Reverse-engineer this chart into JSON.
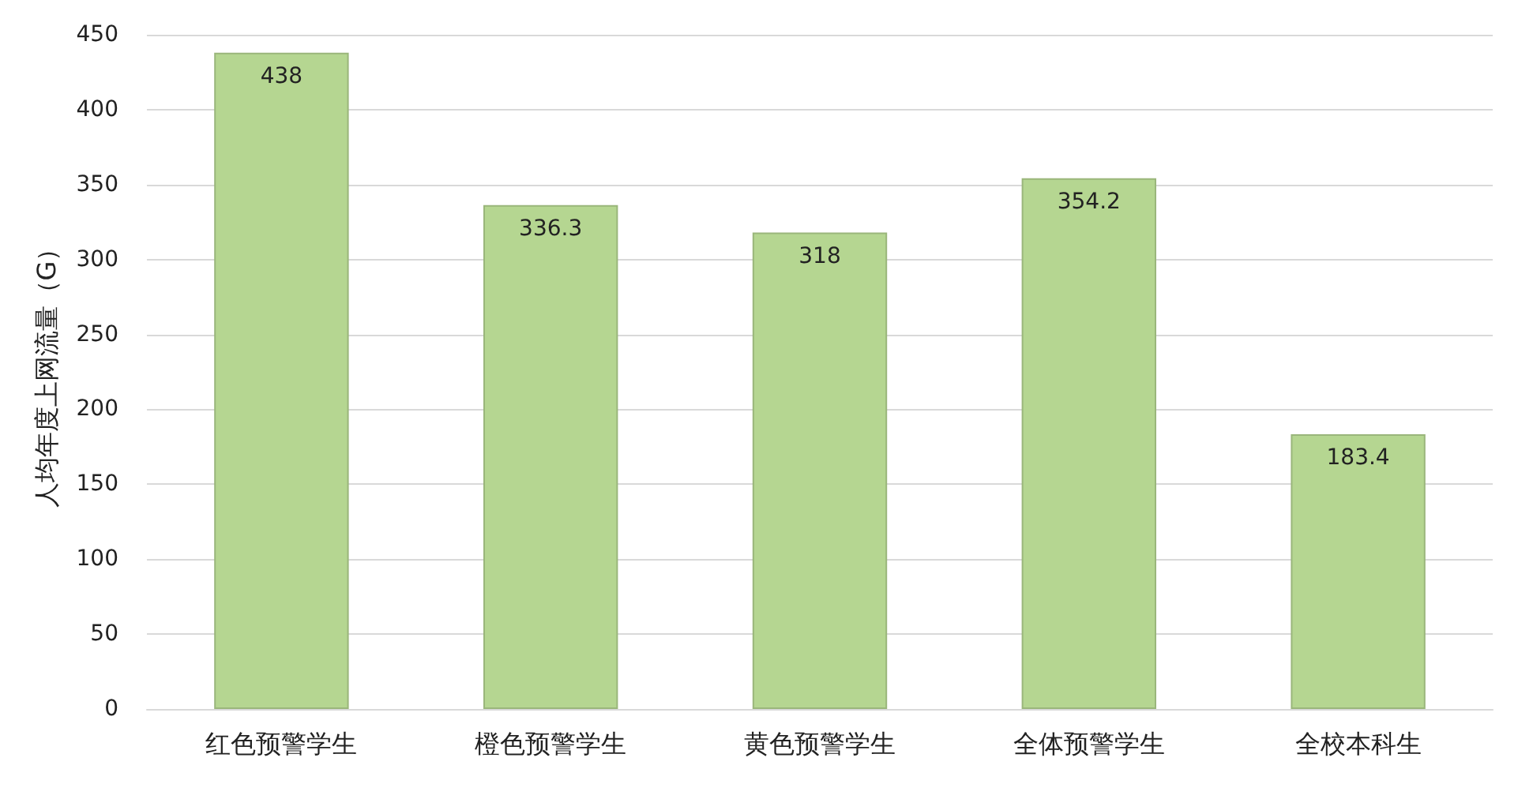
{
  "chart_data": {
    "type": "bar",
    "ylabel": "人均年度上网流量（G）",
    "categories": [
      "红色预警学生",
      "橙色预警学生",
      "黄色预警学生",
      "全体预警学生",
      "全校本科生"
    ],
    "values": [
      438,
      336.3,
      318,
      354.2,
      183.4
    ],
    "color": "#b5d691",
    "ylim": [
      0,
      450
    ],
    "yticks": [
      0,
      50,
      100,
      150,
      200,
      250,
      300,
      350,
      400,
      450
    ],
    "grid": "y",
    "data_labels": true
  }
}
